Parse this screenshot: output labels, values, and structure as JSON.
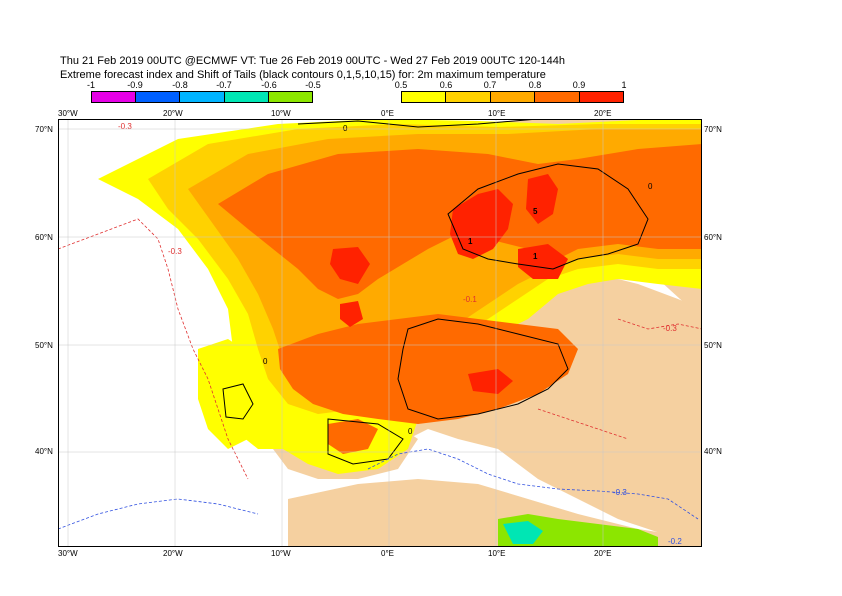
{
  "header": {
    "line1": "Thu 21 Feb 2019 00UTC @ECMWF VT: Tue 26 Feb 2019 00UTC - Wed 27 Feb 2019 00UTC  120-144h",
    "line2": "Extreme forecast index and Shift of Tails (black contours 0,1,5,10,15) for: 2m maximum temperature"
  },
  "colorbar_negative": {
    "labels": [
      "-1",
      "-0.9",
      "-0.8",
      "-0.7",
      "-0.6",
      "-0.5"
    ],
    "colors": [
      "#e600e6",
      "#0060ff",
      "#00b4ff",
      "#00e6b4",
      "#8ce600"
    ]
  },
  "colorbar_positive": {
    "labels": [
      "0.5",
      "0.6",
      "0.7",
      "0.8",
      "0.9",
      "1"
    ],
    "colors": [
      "#ffff00",
      "#ffd200",
      "#ffaa00",
      "#ff6a00",
      "#ff2200"
    ]
  },
  "map": {
    "lon_labels": [
      "30°W",
      "20°W",
      "10°W",
      "0°E",
      "10°E",
      "20°E"
    ],
    "lat_labels": [
      "70°N",
      "60°N",
      "50°N",
      "40°N"
    ],
    "land_color": "#f5d0a0",
    "sea_color": "#ffffff",
    "contour_labels": [
      "0",
      "1",
      "5",
      "0",
      "0",
      "0",
      "1"
    ],
    "dashed_labels": [
      "-0.3",
      "-0.3",
      "-0.3",
      "-0.3",
      "-0.2",
      "-0.1"
    ]
  }
}
